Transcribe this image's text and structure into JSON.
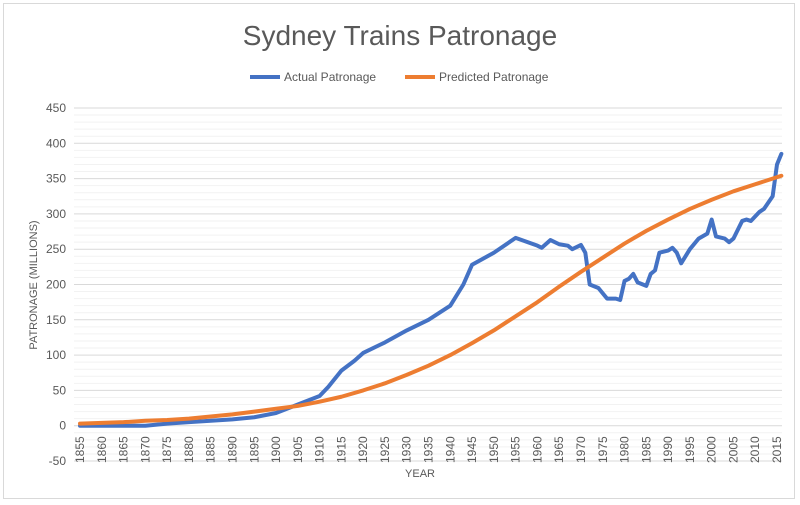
{
  "chart_data": {
    "type": "line",
    "title": "Sydney Trains Patronage",
    "xlabel": "YEAR",
    "ylabel": "PATRONAGE (MILLIONS)",
    "ylim": [
      -50,
      450
    ],
    "yticks": [
      -50,
      0,
      50,
      100,
      150,
      200,
      250,
      300,
      350,
      400,
      450
    ],
    "xticks": [
      1855,
      1860,
      1865,
      1870,
      1875,
      1880,
      1885,
      1890,
      1895,
      1900,
      1905,
      1910,
      1915,
      1920,
      1925,
      1930,
      1935,
      1940,
      1945,
      1950,
      1955,
      1960,
      1965,
      1970,
      1975,
      1980,
      1985,
      1990,
      1995,
      2000,
      2005,
      2010,
      2015
    ],
    "grid": true,
    "legend": "top",
    "series": [
      {
        "name": "Actual Patronage",
        "color": "#4472C4",
        "points": [
          [
            1855,
            0
          ],
          [
            1860,
            0
          ],
          [
            1865,
            0
          ],
          [
            1870,
            0
          ],
          [
            1875,
            3
          ],
          [
            1880,
            5
          ],
          [
            1885,
            7
          ],
          [
            1890,
            9
          ],
          [
            1895,
            12
          ],
          [
            1900,
            18
          ],
          [
            1905,
            30
          ],
          [
            1910,
            42
          ],
          [
            1912,
            55
          ],
          [
            1915,
            78
          ],
          [
            1918,
            92
          ],
          [
            1920,
            103
          ],
          [
            1925,
            118
          ],
          [
            1930,
            135
          ],
          [
            1935,
            150
          ],
          [
            1940,
            170
          ],
          [
            1943,
            200
          ],
          [
            1945,
            228
          ],
          [
            1950,
            245
          ],
          [
            1955,
            266
          ],
          [
            1960,
            255
          ],
          [
            1961,
            252
          ],
          [
            1963,
            263
          ],
          [
            1965,
            257
          ],
          [
            1967,
            255
          ],
          [
            1968,
            250
          ],
          [
            1970,
            256
          ],
          [
            1971,
            245
          ],
          [
            1972,
            200
          ],
          [
            1974,
            195
          ],
          [
            1976,
            180
          ],
          [
            1978,
            180
          ],
          [
            1979,
            178
          ],
          [
            1980,
            205
          ],
          [
            1981,
            208
          ],
          [
            1982,
            215
          ],
          [
            1983,
            203
          ],
          [
            1985,
            198
          ],
          [
            1986,
            215
          ],
          [
            1987,
            220
          ],
          [
            1988,
            245
          ],
          [
            1990,
            248
          ],
          [
            1991,
            252
          ],
          [
            1992,
            245
          ],
          [
            1993,
            230
          ],
          [
            1995,
            250
          ],
          [
            1997,
            265
          ],
          [
            1999,
            272
          ],
          [
            2000,
            292
          ],
          [
            2001,
            268
          ],
          [
            2003,
            265
          ],
          [
            2004,
            260
          ],
          [
            2005,
            265
          ],
          [
            2007,
            290
          ],
          [
            2008,
            292
          ],
          [
            2009,
            290
          ],
          [
            2011,
            303
          ],
          [
            2012,
            307
          ],
          [
            2014,
            325
          ],
          [
            2015,
            370
          ],
          [
            2016,
            385
          ]
        ]
      },
      {
        "name": "Predicted Patronage",
        "color": "#ED7D31",
        "points": [
          [
            1855,
            3
          ],
          [
            1860,
            4
          ],
          [
            1865,
            5
          ],
          [
            1870,
            7
          ],
          [
            1875,
            8
          ],
          [
            1880,
            10
          ],
          [
            1885,
            13
          ],
          [
            1890,
            16
          ],
          [
            1895,
            20
          ],
          [
            1900,
            24
          ],
          [
            1905,
            28
          ],
          [
            1910,
            34
          ],
          [
            1915,
            41
          ],
          [
            1920,
            50
          ],
          [
            1925,
            60
          ],
          [
            1930,
            72
          ],
          [
            1935,
            85
          ],
          [
            1940,
            100
          ],
          [
            1945,
            117
          ],
          [
            1950,
            135
          ],
          [
            1955,
            155
          ],
          [
            1960,
            175
          ],
          [
            1965,
            197
          ],
          [
            1970,
            218
          ],
          [
            1975,
            238
          ],
          [
            1980,
            258
          ],
          [
            1985,
            276
          ],
          [
            1990,
            292
          ],
          [
            1995,
            307
          ],
          [
            2000,
            320
          ],
          [
            2005,
            332
          ],
          [
            2010,
            342
          ],
          [
            2016,
            354
          ]
        ]
      }
    ]
  }
}
